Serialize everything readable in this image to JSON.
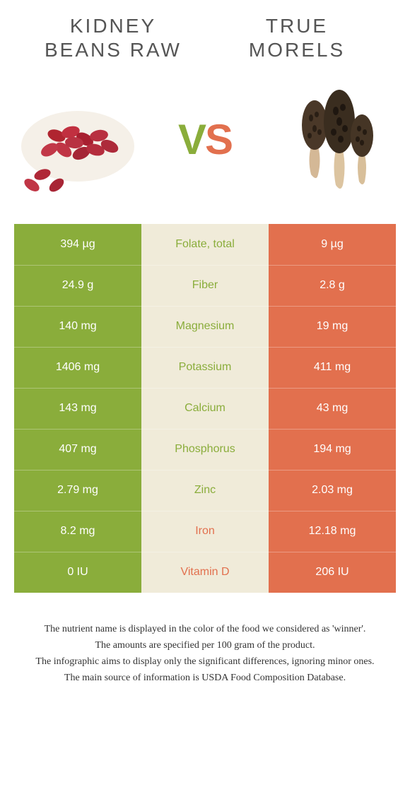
{
  "header": {
    "left_title_l1": "Kidney",
    "left_title_l2": "beans raw",
    "right_title_l1": "True",
    "right_title_l2": "morels"
  },
  "vs": {
    "v": "V",
    "s": "S"
  },
  "colors": {
    "left": "#8aad3b",
    "right": "#e2704e",
    "mid_bg": "#f0ebd9",
    "header_text": "#555555",
    "foot_text": "#333333"
  },
  "rows": [
    {
      "left": "394 µg",
      "label": "Folate, total",
      "right": "9 µg",
      "winner": "left"
    },
    {
      "left": "24.9 g",
      "label": "Fiber",
      "right": "2.8 g",
      "winner": "left"
    },
    {
      "left": "140 mg",
      "label": "Magnesium",
      "right": "19 mg",
      "winner": "left"
    },
    {
      "left": "1406 mg",
      "label": "Potassium",
      "right": "411 mg",
      "winner": "left"
    },
    {
      "left": "143 mg",
      "label": "Calcium",
      "right": "43 mg",
      "winner": "left"
    },
    {
      "left": "407 mg",
      "label": "Phosphorus",
      "right": "194 mg",
      "winner": "left"
    },
    {
      "left": "2.79 mg",
      "label": "Zinc",
      "right": "2.03 mg",
      "winner": "left"
    },
    {
      "left": "8.2 mg",
      "label": "Iron",
      "right": "12.18 mg",
      "winner": "right"
    },
    {
      "left": "0 IU",
      "label": "Vitamin D",
      "right": "206 IU",
      "winner": "right"
    }
  ],
  "footnotes": {
    "l1": "The nutrient name is displayed in the color of the food we considered as 'winner'.",
    "l2": "The amounts are specified per 100 gram of the product.",
    "l3": "The infographic aims to display only the significant differences, ignoring minor ones.",
    "l4": "The main source of information is USDA Food Composition Database."
  }
}
